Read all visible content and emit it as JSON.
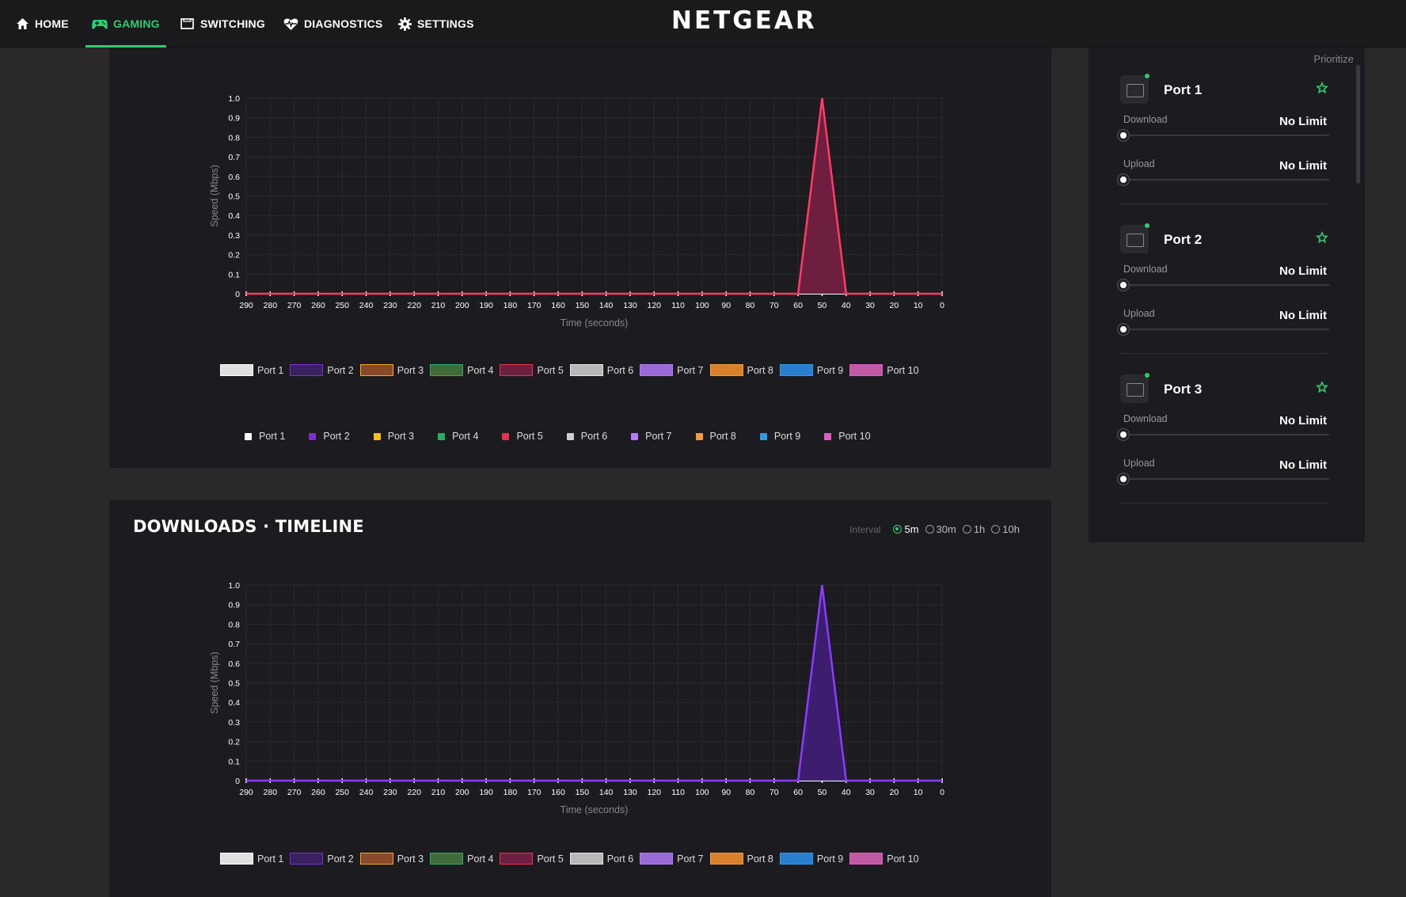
{
  "nav": {
    "items": [
      {
        "label": "HOME",
        "icon": "home-icon"
      },
      {
        "label": "GAMING",
        "icon": "gamepad-icon",
        "active": true
      },
      {
        "label": "SWITCHING",
        "icon": "switch-icon"
      },
      {
        "label": "DIAGNOSTICS",
        "icon": "heart-pulse-icon"
      },
      {
        "label": "SETTINGS",
        "icon": "gear-icon"
      }
    ],
    "brand": "NETGEAR"
  },
  "colors": {
    "accent": "#2ecc71",
    "background": "#2b2829",
    "panel": "#1c1b1f"
  },
  "downloads_panel": {
    "title": "DOWNLOADS · TIMELINE",
    "interval_label": "Interval",
    "interval_options": [
      "5m",
      "30m",
      "1h",
      "10h"
    ],
    "interval_selected": "5m"
  },
  "legend_box_labels": [
    "Port 1",
    "Port 2",
    "Port 3",
    "Port 4",
    "Port 5",
    "Port 6",
    "Port 7",
    "Port 8",
    "Port 9",
    "Port 10"
  ],
  "legend_dot_labels": [
    "Port 1",
    "Port 2",
    "Port 3",
    "Port 4",
    "Port 5",
    "Port 6",
    "Port 7",
    "Port 8",
    "Port 9",
    "Port 10"
  ],
  "port_colors": [
    "#ffffff",
    "#7b2fd0",
    "#f2c21b",
    "#27ae60",
    "#e8304f",
    "#cfcfcf",
    "#b57af0",
    "#f39c3c",
    "#2d9be8",
    "#e05cbe"
  ],
  "chart_data": [
    {
      "type": "area",
      "xlabel": "Time (seconds)",
      "ylabel": "Speed (Mbps)",
      "x": [
        290,
        280,
        270,
        260,
        250,
        240,
        230,
        220,
        210,
        200,
        190,
        180,
        170,
        160,
        150,
        140,
        130,
        120,
        110,
        100,
        90,
        80,
        70,
        60,
        50,
        40,
        30,
        20,
        10,
        0
      ],
      "y_ticks": [
        "0",
        "0.1",
        "0.2",
        "0.3",
        "0.4",
        "0.5",
        "0.6",
        "0.7",
        "0.8",
        "0.9",
        "1.0"
      ],
      "ylim": [
        0,
        1
      ],
      "xlim": [
        290,
        0
      ],
      "grid": true,
      "series": [
        {
          "name": "Port 5",
          "values": [
            0,
            0,
            0,
            0,
            0,
            0,
            0,
            0,
            0,
            0,
            0,
            0,
            0,
            0,
            0,
            0,
            0,
            0,
            0,
            0,
            0,
            0,
            0,
            0,
            1,
            0,
            0,
            0,
            0,
            0
          ]
        }
      ]
    },
    {
      "type": "area",
      "title": "DOWNLOADS · TIMELINE",
      "xlabel": "Time (seconds)",
      "ylabel": "Speed (Mbps)",
      "x": [
        290,
        280,
        270,
        260,
        250,
        240,
        230,
        220,
        210,
        200,
        190,
        180,
        170,
        160,
        150,
        140,
        130,
        120,
        110,
        100,
        90,
        80,
        70,
        60,
        50,
        40,
        30,
        20,
        10,
        0
      ],
      "y_ticks": [
        "0",
        "0.1",
        "0.2",
        "0.3",
        "0.4",
        "0.5",
        "0.6",
        "0.7",
        "0.8",
        "0.9",
        "1.0"
      ],
      "ylim": [
        0,
        1
      ],
      "xlim": [
        290,
        0
      ],
      "grid": true,
      "series": [
        {
          "name": "Port 2",
          "values": [
            0,
            0,
            0,
            0,
            0,
            0,
            0,
            0,
            0,
            0,
            0,
            0,
            0,
            0,
            0,
            0,
            0,
            0,
            0,
            0,
            0,
            0,
            0,
            0,
            1,
            0,
            0,
            0,
            0,
            0
          ]
        }
      ]
    }
  ],
  "sidebar": {
    "prioritize_label": "Prioritize",
    "ports": [
      {
        "name": "Port 1",
        "download_label": "Download",
        "download_value": "No Limit",
        "upload_label": "Upload",
        "upload_value": "No Limit",
        "download_level": 0,
        "upload_level": 0
      },
      {
        "name": "Port 2",
        "download_label": "Download",
        "download_value": "No Limit",
        "upload_label": "Upload",
        "upload_value": "No Limit",
        "download_level": 0,
        "upload_level": 0
      },
      {
        "name": "Port 3",
        "download_label": "Download",
        "download_value": "No Limit",
        "upload_label": "Upload",
        "upload_value": "No Limit",
        "download_level": 0,
        "upload_level": 0
      }
    ]
  }
}
